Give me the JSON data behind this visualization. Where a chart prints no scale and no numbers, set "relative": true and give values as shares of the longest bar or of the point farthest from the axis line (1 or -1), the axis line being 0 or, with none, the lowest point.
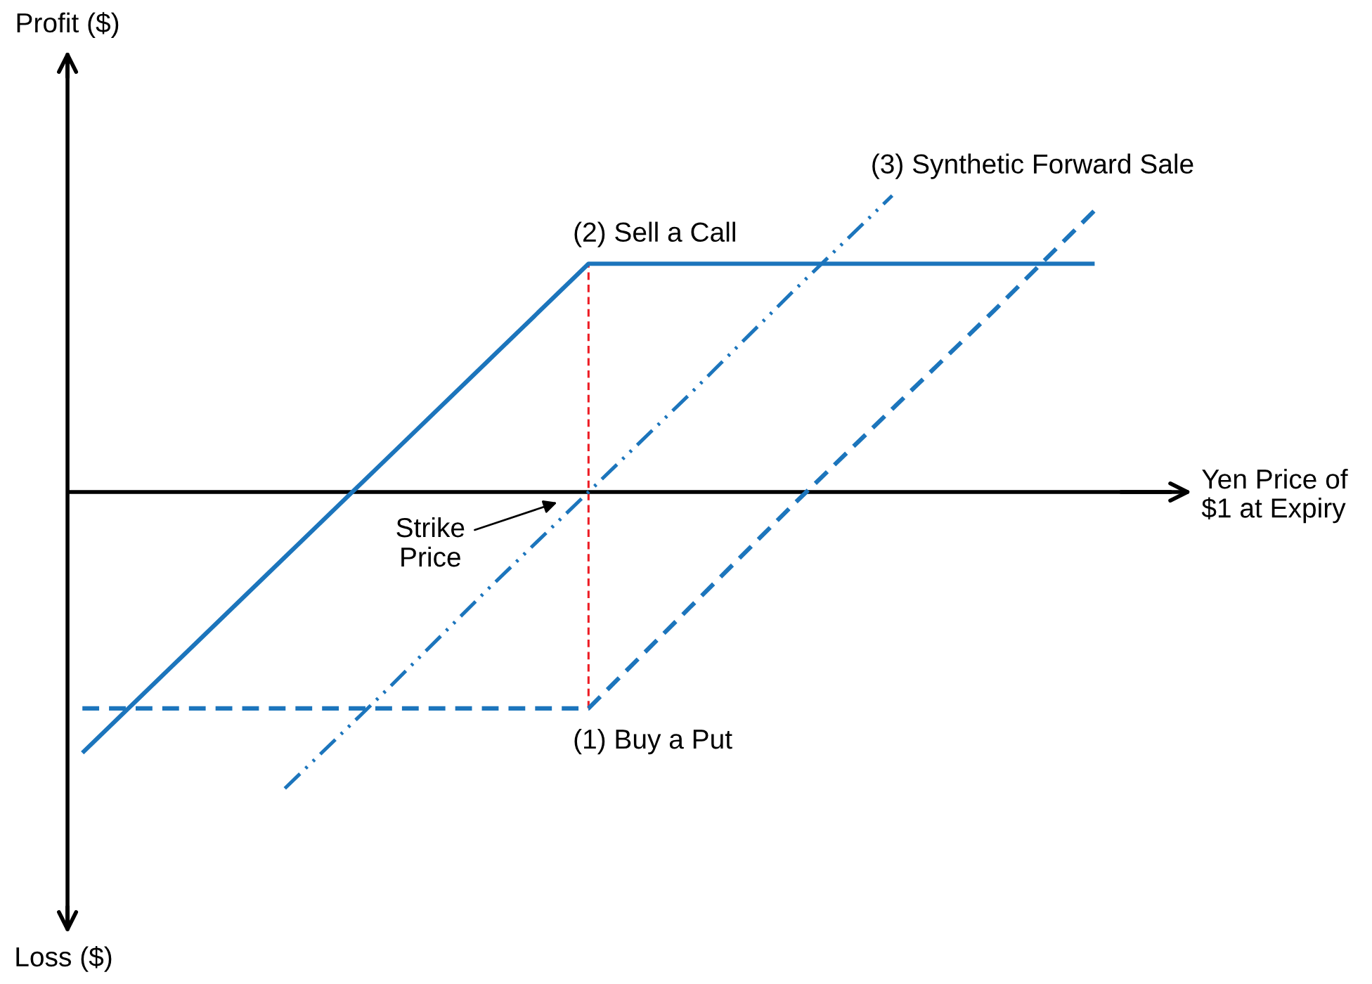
{
  "chart_data": {
    "type": "line",
    "relative": true,
    "xlabel": "Yen Price of\n$1 at Expiry",
    "marker": "none",
    "categories": [
      null,
      null,
      null,
      null,
      null,
      null,
      null,
      null,
      null,
      null,
      null
    ],
    "annotations": [
      "Profit ($)",
      "Strike\nPrice",
      "Loss ($)"
    ],
    "series": [
      {
        "name": "(2) Sell a Call",
        "color": "#1c75bc",
        "line_style": "solid",
        "values": [
          -0.88,
          -0.55,
          -0.22,
          0.11,
          0.44,
          0.77,
          0.77,
          0.77,
          0.77,
          0.77,
          0.77
        ]
      },
      {
        "name": "(1) Buy a Put",
        "color": "#1c75bc",
        "line_style": "dashed",
        "values": [
          -0.73,
          -0.73,
          -0.73,
          -0.73,
          -0.73,
          -0.73,
          -0.39,
          -0.05,
          0.28,
          0.61,
          0.95
        ]
      },
      {
        "name": "(3) Synthetic Forward Sale",
        "color": "#1c75bc",
        "line_style": "dashdot",
        "values": [
          null,
          null,
          -1,
          -0.67,
          -0.33,
          0,
          0.33,
          0.67,
          1,
          null,
          null
        ]
      }
    ]
  }
}
